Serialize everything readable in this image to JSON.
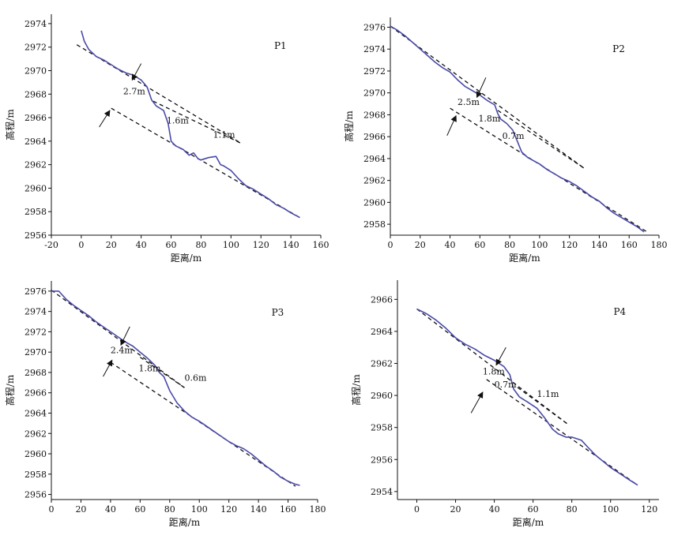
{
  "chart_data": [
    {
      "type": "line",
      "title": "P1",
      "xlabel": "距离/m",
      "ylabel": "高程/m",
      "xlim": [
        -20,
        160
      ],
      "ylim": [
        2956,
        2974.8
      ],
      "xticks": [
        -20,
        0,
        20,
        40,
        60,
        80,
        100,
        120,
        140,
        160
      ],
      "yticks": [
        2956,
        2958,
        2960,
        2962,
        2964,
        2966,
        2968,
        2970,
        2972,
        2974
      ],
      "profile": {
        "x": [
          0,
          2,
          5,
          10,
          15,
          20,
          25,
          30,
          35,
          40,
          44,
          47,
          50,
          55,
          58,
          60,
          63,
          68,
          72,
          75,
          78,
          80,
          85,
          90,
          93,
          95,
          100,
          105,
          110,
          115,
          120,
          125,
          130,
          135,
          140,
          146
        ],
        "y": [
          2973.4,
          2972.5,
          2971.8,
          2971.2,
          2970.9,
          2970.5,
          2970.1,
          2969.8,
          2969.6,
          2969.2,
          2968.6,
          2967.5,
          2967.0,
          2966.6,
          2965.5,
          2964.0,
          2963.6,
          2963.3,
          2962.8,
          2963.0,
          2962.5,
          2962.4,
          2962.6,
          2962.7,
          2962.0,
          2961.9,
          2961.5,
          2960.8,
          2960.2,
          2959.9,
          2959.5,
          2959.1,
          2958.6,
          2958.3,
          2957.9,
          2957.5
        ]
      },
      "lines": [
        {
          "x": [
            -3,
            107
          ],
          "y": [
            2972.2,
            2963.8
          ]
        },
        {
          "x": [
            48,
            107
          ],
          "y": [
            2967.4,
            2963.8
          ]
        },
        {
          "x": [
            20,
            146
          ],
          "y": [
            2966.8,
            2957.5
          ]
        }
      ],
      "labels": [
        {
          "text": "2.7m",
          "x": 28,
          "y": 2968.0
        },
        {
          "text": "1.6m",
          "x": 57,
          "y": 2965.5
        },
        {
          "text": "1.1m",
          "x": 88,
          "y": 2964.3
        }
      ],
      "arrows": [
        {
          "from": [
            40,
            2970.6
          ],
          "to": [
            34,
            2969.2
          ]
        },
        {
          "from": [
            12,
            2965.2
          ],
          "to": [
            19,
            2966.6
          ]
        }
      ]
    },
    {
      "type": "line",
      "title": "P2",
      "xlabel": "距离/m",
      "ylabel": "高程/m",
      "xlim": [
        0,
        180
      ],
      "ylim": [
        2957,
        2976.9
      ],
      "xticks": [
        0,
        20,
        40,
        60,
        80,
        100,
        120,
        140,
        160,
        180
      ],
      "yticks": [
        2958,
        2960,
        2962,
        2964,
        2966,
        2968,
        2970,
        2972,
        2974,
        2976
      ],
      "profile": {
        "x": [
          0,
          5,
          10,
          15,
          20,
          25,
          30,
          35,
          40,
          45,
          50,
          55,
          60,
          65,
          70,
          72,
          74,
          78,
          82,
          85,
          88,
          92,
          96,
          100,
          105,
          110,
          115,
          120,
          125,
          130,
          135,
          140,
          145,
          150,
          155,
          160,
          165,
          170
        ],
        "y": [
          2976.1,
          2975.7,
          2975.2,
          2974.6,
          2974.0,
          2973.4,
          2972.8,
          2972.3,
          2971.9,
          2971.2,
          2970.6,
          2970.2,
          2969.8,
          2969.3,
          2968.9,
          2968.1,
          2967.6,
          2967.2,
          2966.6,
          2965.6,
          2964.6,
          2964.1,
          2963.8,
          2963.5,
          2963.0,
          2962.6,
          2962.2,
          2961.9,
          2961.5,
          2961.0,
          2960.5,
          2960.1,
          2959.5,
          2959.0,
          2958.6,
          2958.2,
          2957.8,
          2957.3
        ]
      },
      "lines": [
        {
          "x": [
            0,
            130
          ],
          "y": [
            2976.1,
            2963.1
          ]
        },
        {
          "x": [
            72,
            130
          ],
          "y": [
            2968.4,
            2963.1
          ]
        },
        {
          "x": [
            40,
            172
          ],
          "y": [
            2968.6,
            2957.3
          ]
        }
      ],
      "labels": [
        {
          "text": "2.5m",
          "x": 45,
          "y": 2968.9
        },
        {
          "text": "1.8m",
          "x": 59,
          "y": 2967.4
        },
        {
          "text": "0.7m",
          "x": 75,
          "y": 2965.8
        }
      ],
      "arrows": [
        {
          "from": [
            64,
            2971.4
          ],
          "to": [
            58,
            2969.6
          ]
        },
        {
          "from": [
            38,
            2966.1
          ],
          "to": [
            44,
            2967.9
          ]
        }
      ]
    },
    {
      "type": "line",
      "title": "P3",
      "xlabel": "距离/m",
      "ylabel": "高程/m",
      "xlim": [
        0,
        180
      ],
      "ylim": [
        2955.5,
        2977
      ],
      "xticks": [
        0,
        20,
        40,
        60,
        80,
        100,
        120,
        140,
        160,
        180
      ],
      "yticks": [
        2956,
        2958,
        2960,
        2962,
        2964,
        2966,
        2968,
        2970,
        2972,
        2974,
        2976
      ],
      "profile": {
        "x": [
          0,
          5,
          10,
          15,
          20,
          25,
          30,
          35,
          40,
          45,
          50,
          55,
          60,
          65,
          70,
          73,
          76,
          80,
          85,
          90,
          95,
          100,
          105,
          110,
          115,
          120,
          125,
          130,
          135,
          140,
          145,
          150,
          155,
          160,
          165,
          168
        ],
        "y": [
          2976.0,
          2976.0,
          2975.2,
          2974.6,
          2974.1,
          2973.6,
          2973.0,
          2972.5,
          2972.0,
          2971.5,
          2971.0,
          2970.6,
          2970.0,
          2969.4,
          2968.7,
          2968.0,
          2967.6,
          2966.2,
          2965.0,
          2964.2,
          2963.6,
          2963.2,
          2962.7,
          2962.2,
          2961.7,
          2961.2,
          2960.8,
          2960.5,
          2960.0,
          2959.4,
          2958.8,
          2958.3,
          2957.7,
          2957.3,
          2957.0,
          2956.9
        ]
      },
      "lines": [
        {
          "x": [
            0,
            90
          ],
          "y": [
            2976.1,
            2966.5
          ]
        },
        {
          "x": [
            60,
            90
          ],
          "y": [
            2969.5,
            2966.5
          ]
        },
        {
          "x": [
            40,
            165
          ],
          "y": [
            2969.0,
            2956.8
          ]
        }
      ],
      "labels": [
        {
          "text": "2.4m",
          "x": 40,
          "y": 2969.9
        },
        {
          "text": "1.8m",
          "x": 59,
          "y": 2968.1
        },
        {
          "text": "0.6m",
          "x": 90,
          "y": 2967.2
        }
      ],
      "arrows": [
        {
          "from": [
            53,
            2972.5
          ],
          "to": [
            47,
            2970.7
          ]
        },
        {
          "from": [
            35,
            2967.6
          ],
          "to": [
            41,
            2969.2
          ]
        }
      ]
    },
    {
      "type": "line",
      "title": "P4",
      "xlabel": "距离/m",
      "ylabel": "高程/m",
      "xlim": [
        -10,
        125
      ],
      "ylim": [
        2953.5,
        2967.2
      ],
      "xticks": [
        0,
        20,
        40,
        60,
        80,
        100,
        120
      ],
      "yticks": [
        2954,
        2956,
        2958,
        2960,
        2962,
        2964,
        2966
      ],
      "profile": {
        "x": [
          0,
          5,
          10,
          15,
          20,
          25,
          30,
          35,
          40,
          45,
          48,
          50,
          53,
          57,
          62,
          66,
          70,
          73,
          77,
          80,
          85,
          88,
          92,
          96,
          100,
          105,
          110,
          114
        ],
        "y": [
          2965.4,
          2965.1,
          2964.7,
          2964.2,
          2963.6,
          2963.2,
          2962.9,
          2962.5,
          2962.2,
          2961.8,
          2961.3,
          2960.4,
          2959.9,
          2959.6,
          2959.2,
          2958.6,
          2957.9,
          2957.6,
          2957.4,
          2957.4,
          2957.2,
          2956.8,
          2956.3,
          2955.9,
          2955.5,
          2955.1,
          2954.7,
          2954.4
        ]
      },
      "lines": [
        {
          "x": [
            0,
            78
          ],
          "y": [
            2965.4,
            2958.2
          ]
        },
        {
          "x": [
            52,
            78
          ],
          "y": [
            2960.5,
            2958.2
          ]
        },
        {
          "x": [
            36,
            114
          ],
          "y": [
            2961.0,
            2954.4
          ]
        }
      ],
      "labels": [
        {
          "text": "1.8m",
          "x": 34,
          "y": 2961.3
        },
        {
          "text": "0.7m",
          "x": 40,
          "y": 2960.5
        },
        {
          "text": "1.1m",
          "x": 62,
          "y": 2959.9
        }
      ],
      "arrows": [
        {
          "from": [
            46,
            2963.0
          ],
          "to": [
            41,
            2961.9
          ]
        },
        {
          "from": [
            28,
            2958.9
          ],
          "to": [
            34,
            2960.2
          ]
        }
      ]
    }
  ]
}
